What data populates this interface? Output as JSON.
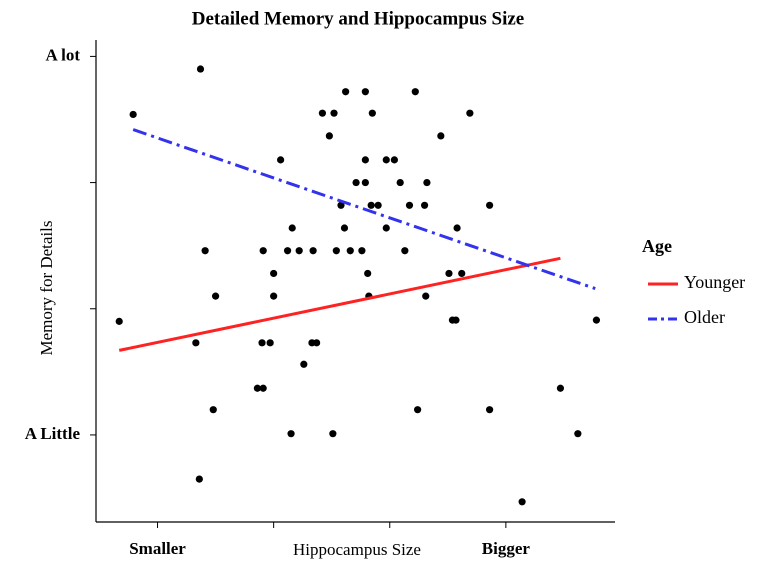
{
  "chart_data": {
    "type": "scatter",
    "title": "Detailed Memory and Hippocampus Size",
    "xlabel": "Hippocampus Size",
    "ylabel": "Memory for Details",
    "xlim": [
      -0.53,
      3.94
    ],
    "ylim": [
      -0.69,
      3.13
    ],
    "xticks": [
      {
        "value": 0,
        "label": "Smaller"
      },
      {
        "value": 1,
        "label": null
      },
      {
        "value": 2,
        "label": null
      },
      {
        "value": 3,
        "label": "Bigger"
      }
    ],
    "yticks": [
      {
        "value": 0,
        "label": "A Little"
      },
      {
        "value": 1,
        "label": null
      },
      {
        "value": 2,
        "label": null
      },
      {
        "value": 3,
        "label": "A lot"
      }
    ],
    "points": {
      "color": "#000000",
      "x": [
        0.37,
        -0.21,
        -0.33,
        0.33,
        0.36,
        0.41,
        0.5,
        0.48,
        0.86,
        0.91,
        0.9,
        0.97,
        0.91,
        1.0,
        1.0,
        1.06,
        1.12,
        1.16,
        1.15,
        1.22,
        1.26,
        1.33,
        1.37,
        1.34,
        1.42,
        1.52,
        1.48,
        1.51,
        1.54,
        1.58,
        1.61,
        1.62,
        1.66,
        1.71,
        1.76,
        1.79,
        1.79,
        1.79,
        1.81,
        1.82,
        1.85,
        1.84,
        1.9,
        1.97,
        1.97,
        2.04,
        2.09,
        2.13,
        2.17,
        2.22,
        2.24,
        2.3,
        2.32,
        2.31,
        2.44,
        2.51,
        2.54,
        2.57,
        2.58,
        2.62,
        2.69,
        2.86,
        2.86,
        3.14,
        3.47,
        3.62,
        3.78
      ],
      "values": [
        2.9,
        2.54,
        0.9,
        0.73,
        -0.35,
        1.46,
        1.1,
        0.2,
        0.37,
        0.37,
        0.73,
        0.73,
        1.46,
        1.28,
        1.1,
        2.18,
        1.46,
        1.64,
        0.01,
        1.46,
        0.56,
        0.73,
        0.73,
        1.46,
        2.55,
        2.55,
        2.37,
        0.01,
        1.46,
        1.82,
        1.64,
        2.72,
        1.46,
        2.0,
        1.46,
        2.72,
        2.18,
        2.0,
        1.28,
        1.1,
        2.55,
        1.82,
        1.82,
        1.64,
        2.18,
        2.18,
        2.0,
        1.46,
        1.82,
        2.72,
        0.2,
        1.82,
        2.0,
        1.1,
        2.37,
        1.28,
        0.91,
        0.91,
        1.64,
        1.28,
        2.55,
        1.82,
        0.2,
        -0.53,
        0.37,
        0.01,
        0.91
      ]
    },
    "legend_title": "Age",
    "series": [
      {
        "name": "Younger",
        "color": "#ff2222",
        "dash": "solid",
        "x": [
          -0.33,
          3.47
        ],
        "values": [
          0.67,
          1.4
        ]
      },
      {
        "name": "Older",
        "color": "#3333ee",
        "dash": "dashdot",
        "x": [
          -0.21,
          3.77
        ],
        "values": [
          2.42,
          1.16
        ]
      }
    ]
  }
}
